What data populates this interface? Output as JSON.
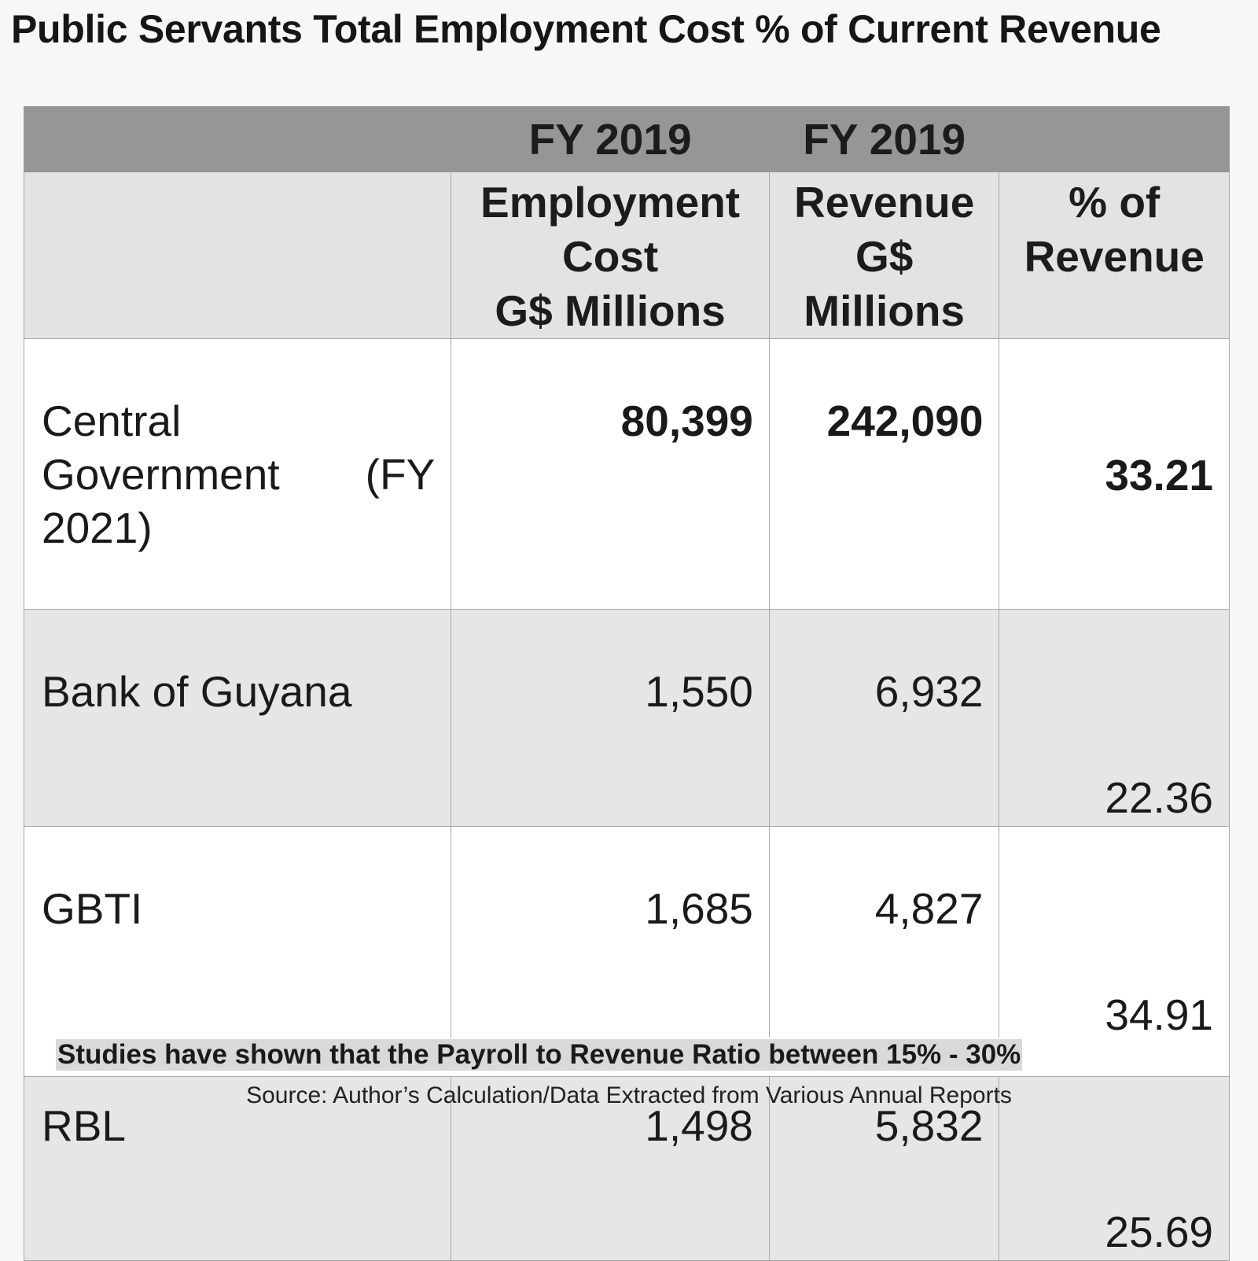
{
  "title": "Public Servants Total Employment Cost % of Current Revenue",
  "chart_data": {
    "type": "table",
    "title": "Public Servants Total Employment Cost % of Current Revenue",
    "year_headers": [
      "FY 2019",
      "FY 2019"
    ],
    "columns": [
      {
        "lines": [
          "Employment",
          "Cost",
          "G$ Millions"
        ]
      },
      {
        "lines": [
          "Revenue",
          "G$",
          "Millions"
        ]
      },
      {
        "lines": [
          "% of",
          "Revenue"
        ]
      }
    ],
    "rows": [
      {
        "entity_lines": [
          "Central",
          "Government",
          "(FY",
          "2021)"
        ],
        "employment_cost": "80,399",
        "revenue": "242,090",
        "pct_of_revenue": "33.21"
      },
      {
        "entity": "Bank of Guyana",
        "employment_cost": "1,550",
        "revenue": "6,932",
        "pct_of_revenue": "22.36"
      },
      {
        "entity": "GBTI",
        "employment_cost": "1,685",
        "revenue": "4,827",
        "pct_of_revenue": "34.91"
      },
      {
        "entity": "RBL",
        "employment_cost": "1,498",
        "revenue": "5,832",
        "pct_of_revenue": "25.69"
      }
    ],
    "note": "Studies have shown that the Payroll to Revenue Ratio between 15% - 30%",
    "source": "Source: Author’s Calculation/Data Extracted from Various Annual Reports"
  }
}
